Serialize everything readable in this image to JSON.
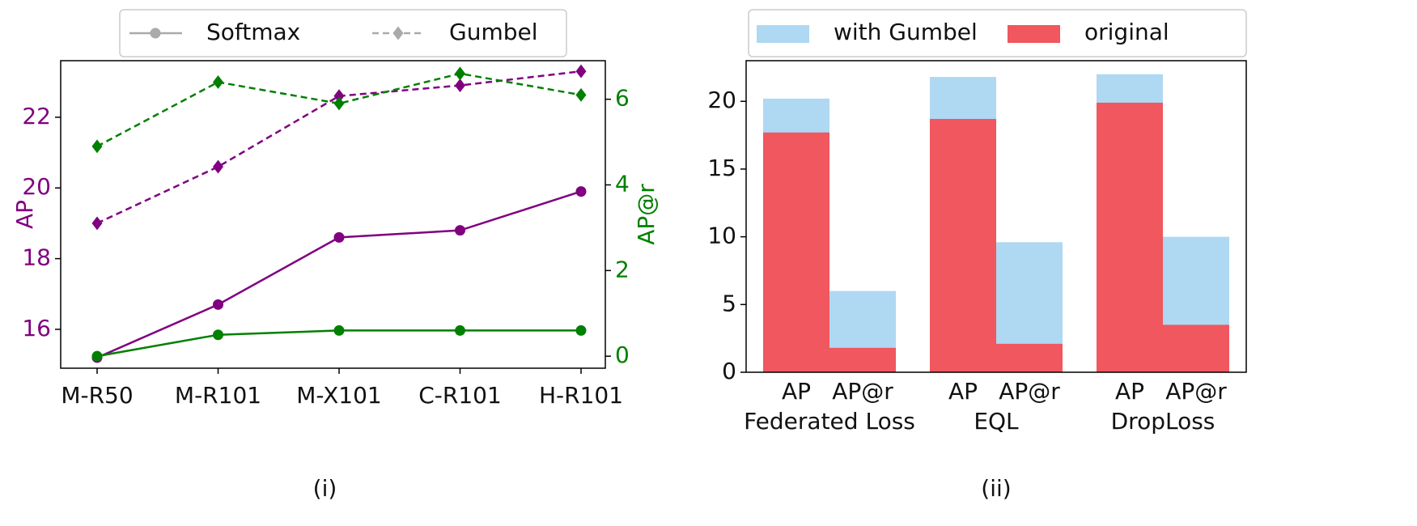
{
  "chart_data": [
    {
      "type": "line",
      "categories": [
        "M-R50",
        "M-R101",
        "M-X101",
        "C-R101",
        "H-R101"
      ],
      "ylabel": "AP",
      "y2label": "AP@r",
      "caption": "(i)",
      "ylim": [
        14.9,
        23.6
      ],
      "yticks": [
        16,
        18,
        20,
        22
      ],
      "y2lim": [
        -0.28,
        6.9
      ],
      "y2ticks": [
        0,
        2,
        4,
        6
      ],
      "ycolor": "#800080",
      "y2color": "#008000",
      "legend_color": "#aaaaaa",
      "series": [
        {
          "name": "Softmax",
          "color": "#800080",
          "dashed": false,
          "marker": "circle",
          "values": [
            15.2,
            16.7,
            18.6,
            18.8,
            19.9
          ]
        },
        {
          "name": "Gumbel",
          "color": "#800080",
          "dashed": true,
          "marker": "diamond",
          "values": [
            19.0,
            20.6,
            22.6,
            22.9,
            23.3
          ]
        },
        {
          "name": "Softmax",
          "color": "#008000",
          "dashed": false,
          "marker": "circle",
          "axis": "y2",
          "values": [
            0,
            0.5,
            0.6,
            0.6,
            0.6
          ]
        },
        {
          "name": "Gumbel",
          "color": "#008000",
          "dashed": true,
          "marker": "diamond",
          "axis": "y2",
          "values": [
            4.9,
            6.4,
            5.9,
            6.6,
            6.1
          ]
        }
      ]
    },
    {
      "type": "bar",
      "overlay": true,
      "categories": [
        "AP",
        "AP@r",
        "AP",
        "AP@r",
        "AP",
        "AP@r"
      ],
      "groups": [
        "Federated Loss",
        "EQL",
        "DropLoss"
      ],
      "caption": "(ii)",
      "ylim": [
        0,
        23
      ],
      "yticks": [
        0,
        5,
        10,
        15,
        20
      ],
      "series": [
        {
          "name": "with Gumbel",
          "color": "#afd8f3",
          "values": [
            20.2,
            6.0,
            21.8,
            9.6,
            22.0,
            10.0
          ]
        },
        {
          "name": "original",
          "color": "#f0575e",
          "values": [
            17.7,
            1.8,
            18.7,
            2.1,
            19.9,
            3.5
          ]
        }
      ]
    }
  ]
}
